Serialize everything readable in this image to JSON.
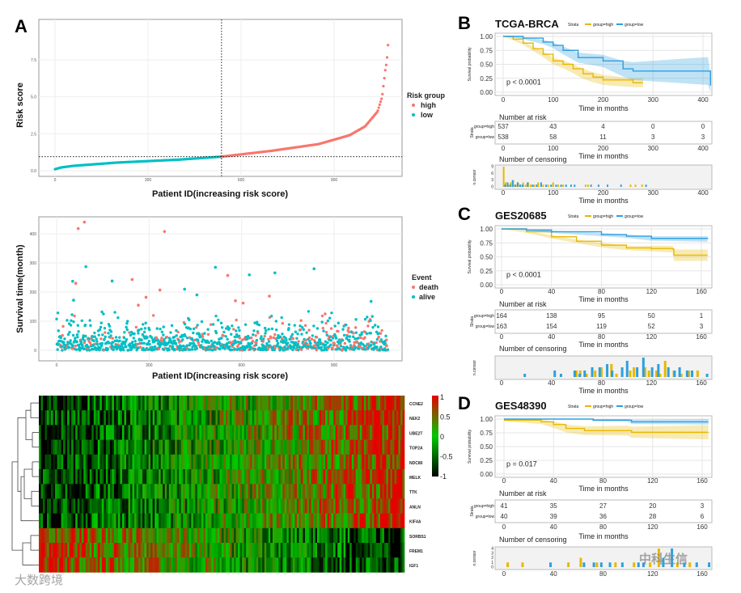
{
  "panel_labels": [
    "A",
    "B",
    "C",
    "D"
  ],
  "watermarks": {
    "left": "大数跨境",
    "right": "中科生信"
  },
  "colors": {
    "high": "#F8766D",
    "low": "#00BFC4",
    "km_high": "#E7B800",
    "km_low": "#2E9FDF"
  },
  "chart_data": [
    {
      "type": "scatter",
      "xlabel": "Patient ID(increasing risk score)",
      "ylabel": "Risk score",
      "xticks": [
        "0",
        "300",
        "600",
        "900"
      ],
      "yticks": [
        "0.0",
        "2.5",
        "5.0",
        "7.5"
      ],
      "legend_title": "Risk group",
      "legend": [
        "high",
        "low"
      ],
      "n_patients": 1075,
      "cutoff_index": 537,
      "cutoff_score": 0.95,
      "curve": [
        [
          0,
          0.1
        ],
        [
          20,
          0.22
        ],
        [
          60,
          0.33
        ],
        [
          200,
          0.55
        ],
        [
          400,
          0.75
        ],
        [
          537,
          0.95
        ],
        [
          700,
          1.35
        ],
        [
          850,
          1.8
        ],
        [
          950,
          2.4
        ],
        [
          1000,
          3.0
        ],
        [
          1040,
          4.0
        ],
        [
          1055,
          5.0
        ],
        [
          1065,
          6.8
        ],
        [
          1070,
          7.4
        ],
        [
          1073,
          8.2
        ],
        [
          1075,
          8.8
        ]
      ]
    },
    {
      "type": "scatter",
      "xlabel": "Patient ID(increasing risk score)",
      "ylabel": "Survival time(month)",
      "xticks": [
        "0",
        "300",
        "600",
        "900"
      ],
      "yticks": [
        "0",
        "100",
        "200",
        "300",
        "400"
      ],
      "legend_title": "Event",
      "legend": [
        "death",
        "alive"
      ],
      "notable_points": [
        [
          70,
          418,
          "death"
        ],
        [
          90,
          440,
          "death"
        ],
        [
          350,
          408,
          "death"
        ],
        [
          95,
          287,
          "alive"
        ],
        [
          52,
          237,
          "alive"
        ],
        [
          62,
          230,
          "death"
        ],
        [
          180,
          238,
          "alive"
        ],
        [
          245,
          243,
          "death"
        ],
        [
          55,
          172,
          "alive"
        ],
        [
          335,
          207,
          "death"
        ],
        [
          415,
          210,
          "alive"
        ],
        [
          455,
          190,
          "alive"
        ],
        [
          515,
          285,
          "alive"
        ],
        [
          555,
          257,
          "death"
        ],
        [
          625,
          259,
          "alive"
        ],
        [
          708,
          266,
          "alive"
        ],
        [
          835,
          280,
          "alive"
        ],
        [
          690,
          186,
          "death"
        ],
        [
          1020,
          168,
          "alive"
        ],
        [
          290,
          182,
          "death"
        ],
        [
          265,
          155,
          "death"
        ],
        [
          580,
          170,
          "death"
        ],
        [
          605,
          162,
          "death"
        ]
      ]
    },
    {
      "type": "heatmap",
      "genes": [
        "CCNE2",
        "NEK2",
        "UBE2T",
        "TOP2A",
        "NDC80",
        "MELK",
        "TTK",
        "ANLN",
        "KIF4A",
        "SORBS1",
        "FREM1",
        "IGF1"
      ],
      "trend": [
        1,
        1,
        1,
        1,
        1,
        1,
        1,
        1,
        1,
        -1,
        -1,
        -1
      ],
      "colorbar_ticks": [
        "1",
        "0.5",
        "0",
        "-0.5",
        "-1"
      ]
    },
    {
      "type": "line",
      "title": "TCGA-BRCA",
      "strata_label": "Strata",
      "legend": [
        "group=high",
        "group=low"
      ],
      "ylabel": "Survival probability",
      "xlabel": "Time in months",
      "xmax": 400,
      "xticks": [
        "0",
        "100",
        "200",
        "300",
        "400"
      ],
      "yticks": [
        "0.00",
        "0.25",
        "0.50",
        "0.75",
        "1.00"
      ],
      "pvalue": "p < 0.0001",
      "series": [
        {
          "name": "group=high",
          "values": [
            [
              0,
              1,
              0
            ],
            [
              20,
              0.95,
              0.02
            ],
            [
              40,
              0.88,
              0.03
            ],
            [
              60,
              0.78,
              0.04
            ],
            [
              80,
              0.68,
              0.05
            ],
            [
              100,
              0.56,
              0.06
            ],
            [
              120,
              0.5,
              0.07
            ],
            [
              140,
              0.42,
              0.08
            ],
            [
              160,
              0.33,
              0.09
            ],
            [
              180,
              0.27,
              0.09
            ],
            [
              200,
              0.22,
              0.09
            ],
            [
              260,
              0.17,
              0.08
            ],
            [
              280,
              0.17,
              0.08
            ]
          ]
        },
        {
          "name": "group=low",
          "values": [
            [
              0,
              1,
              0
            ],
            [
              40,
              0.97,
              0.02
            ],
            [
              80,
              0.9,
              0.04
            ],
            [
              100,
              0.84,
              0.05
            ],
            [
              120,
              0.75,
              0.07
            ],
            [
              150,
              0.62,
              0.09
            ],
            [
              200,
              0.56,
              0.11
            ],
            [
              240,
              0.42,
              0.14
            ],
            [
              260,
              0.38,
              0.16
            ],
            [
              410,
              0.38,
              0.25
            ],
            [
              415,
              0.12,
              0.2
            ]
          ]
        }
      ],
      "risk_table": {
        "title": "Number at risk",
        "ylabel": "Strata",
        "rows": [
          [
            "537",
            "43",
            "4",
            "0",
            "0"
          ],
          [
            "538",
            "58",
            "11",
            "3",
            "3"
          ]
        ]
      },
      "censor": {
        "title": "Number of censoring",
        "ylabel": "n.censor",
        "yticks": [
          "0",
          "3",
          "6",
          "9"
        ],
        "ymax": 9,
        "high": [
          [
            1,
            9
          ],
          [
            5,
            2
          ],
          [
            10,
            1
          ],
          [
            15,
            2
          ],
          [
            20,
            3
          ],
          [
            25,
            1
          ],
          [
            30,
            2
          ],
          [
            35,
            1
          ],
          [
            40,
            2
          ],
          [
            45,
            1
          ],
          [
            50,
            2
          ],
          [
            55,
            1
          ],
          [
            62,
            1
          ],
          [
            70,
            2
          ],
          [
            80,
            1
          ],
          [
            90,
            1
          ],
          [
            100,
            2
          ],
          [
            110,
            1
          ],
          [
            120,
            1
          ],
          [
            165,
            1
          ],
          [
            170,
            1
          ],
          [
            255,
            1
          ],
          [
            265,
            1
          ],
          [
            278,
            1
          ]
        ],
        "low": [
          [
            3,
            1
          ],
          [
            8,
            2
          ],
          [
            13,
            1
          ],
          [
            18,
            3
          ],
          [
            23,
            1
          ],
          [
            28,
            2
          ],
          [
            33,
            1
          ],
          [
            38,
            1
          ],
          [
            48,
            2
          ],
          [
            58,
            1
          ],
          [
            66,
            1
          ],
          [
            75,
            2
          ],
          [
            85,
            1
          ],
          [
            95,
            1
          ],
          [
            105,
            1
          ],
          [
            115,
            1
          ],
          [
            125,
            1
          ],
          [
            135,
            1
          ],
          [
            142,
            1
          ],
          [
            175,
            1
          ],
          [
            190,
            1
          ],
          [
            208,
            1
          ],
          [
            235,
            1
          ],
          [
            285,
            1
          ]
        ]
      }
    },
    {
      "type": "line",
      "title": "GES20685",
      "strata_label": "Strata",
      "legend": [
        "group=high",
        "group=low"
      ],
      "ylabel": "Survival probability",
      "xlabel": "Time in months",
      "xmax": 160,
      "xticks": [
        "0",
        "40",
        "80",
        "120",
        "160"
      ],
      "yticks": [
        "0.00",
        "0.25",
        "0.50",
        "0.75",
        "1.00"
      ],
      "pvalue": "p < 0.0001",
      "series": [
        {
          "name": "group=high",
          "values": [
            [
              0,
              1,
              0
            ],
            [
              20,
              0.95,
              0.02
            ],
            [
              40,
              0.86,
              0.03
            ],
            [
              60,
              0.78,
              0.03
            ],
            [
              80,
              0.71,
              0.04
            ],
            [
              100,
              0.66,
              0.04
            ],
            [
              120,
              0.65,
              0.05
            ],
            [
              137,
              0.64,
              0.06
            ],
            [
              138,
              0.53,
              0.1
            ],
            [
              165,
              0.53,
              0.1
            ]
          ]
        },
        {
          "name": "group=low",
          "values": [
            [
              0,
              1,
              0
            ],
            [
              20,
              0.98,
              0.01
            ],
            [
              40,
              0.95,
              0.02
            ],
            [
              80,
              0.9,
              0.03
            ],
            [
              100,
              0.87,
              0.03
            ],
            [
              120,
              0.83,
              0.04
            ],
            [
              165,
              0.82,
              0.05
            ]
          ]
        }
      ],
      "risk_table": {
        "title": "Number at risk",
        "ylabel": "Strata",
        "rows": [
          [
            "164",
            "138",
            "95",
            "50",
            "1"
          ],
          [
            "163",
            "154",
            "119",
            "52",
            "3"
          ]
        ]
      },
      "censor": {
        "title": "Number of censoring",
        "ylabel": "n.censor",
        "yticks": [],
        "ymax": 6,
        "high": [
          [
            60,
            2
          ],
          [
            63,
            2
          ],
          [
            68,
            1
          ],
          [
            75,
            2
          ],
          [
            80,
            3
          ],
          [
            88,
            4
          ],
          [
            92,
            1
          ],
          [
            103,
            2
          ],
          [
            106,
            3
          ],
          [
            115,
            3
          ],
          [
            118,
            2
          ],
          [
            124,
            2
          ],
          [
            127,
            1
          ],
          [
            131,
            5
          ],
          [
            138,
            2
          ],
          [
            144,
            1
          ],
          [
            150,
            2
          ],
          [
            157,
            2
          ]
        ],
        "low": [
          [
            18,
            1
          ],
          [
            42,
            2
          ],
          [
            47,
            1
          ],
          [
            58,
            2
          ],
          [
            62,
            1
          ],
          [
            66,
            2
          ],
          [
            72,
            3
          ],
          [
            78,
            3
          ],
          [
            84,
            4
          ],
          [
            88,
            2
          ],
          [
            96,
            3
          ],
          [
            100,
            5
          ],
          [
            108,
            3
          ],
          [
            113,
            6
          ],
          [
            120,
            3
          ],
          [
            125,
            4
          ],
          [
            133,
            3
          ],
          [
            138,
            2
          ],
          [
            142,
            3
          ],
          [
            148,
            2
          ],
          [
            152,
            2
          ],
          [
            164,
            1
          ]
        ]
      }
    },
    {
      "type": "line",
      "title": "GES48390",
      "strata_label": "Strata",
      "legend": [
        "group=high",
        "group=low"
      ],
      "ylabel": "Survival probability",
      "xlabel": "Time in months",
      "xmax": 160,
      "xticks": [
        "0",
        "40",
        "80",
        "120",
        "160"
      ],
      "yticks": [
        "0.00",
        "0.25",
        "0.50",
        "0.75",
        "1.00"
      ],
      "pvalue": "p = 0.017",
      "series": [
        {
          "name": "group=high",
          "values": [
            [
              0,
              0.98,
              0.02
            ],
            [
              30,
              0.95,
              0.04
            ],
            [
              40,
              0.9,
              0.06
            ],
            [
              50,
              0.83,
              0.07
            ],
            [
              65,
              0.79,
              0.08
            ],
            [
              100,
              0.79,
              0.09
            ],
            [
              103,
              0.76,
              0.1
            ],
            [
              165,
              0.76,
              0.13
            ]
          ]
        },
        {
          "name": "group=low",
          "values": [
            [
              0,
              1,
              0
            ],
            [
              70,
              1,
              0
            ],
            [
              72,
              0.98,
              0.02
            ],
            [
              100,
              0.98,
              0.03
            ],
            [
              103,
              0.95,
              0.04
            ],
            [
              165,
              0.95,
              0.05
            ]
          ]
        }
      ],
      "risk_table": {
        "title": "Number at risk",
        "ylabel": "Strata",
        "rows": [
          [
            "41",
            "35",
            "27",
            "20",
            "3"
          ],
          [
            "40",
            "39",
            "36",
            "28",
            "6"
          ]
        ]
      },
      "censor": {
        "title": "Number of censoring",
        "ylabel": "n.censor",
        "yticks": [
          "0",
          "1",
          "2",
          "3",
          "4"
        ],
        "ymax": 4,
        "high": [
          [
            3,
            1
          ],
          [
            15,
            1
          ],
          [
            52,
            1
          ],
          [
            62,
            2
          ],
          [
            75,
            1
          ],
          [
            90,
            1
          ],
          [
            105,
            1
          ],
          [
            118,
            1
          ],
          [
            125,
            4
          ],
          [
            140,
            1
          ],
          [
            150,
            1
          ]
        ],
        "low": [
          [
            37,
            1
          ],
          [
            64,
            1
          ],
          [
            72,
            1
          ],
          [
            78,
            1
          ],
          [
            85,
            1
          ],
          [
            95,
            1
          ],
          [
            108,
            1
          ],
          [
            112,
            1
          ],
          [
            128,
            2
          ],
          [
            135,
            4
          ],
          [
            145,
            1
          ],
          [
            155,
            1
          ],
          [
            165,
            1
          ]
        ]
      }
    }
  ]
}
